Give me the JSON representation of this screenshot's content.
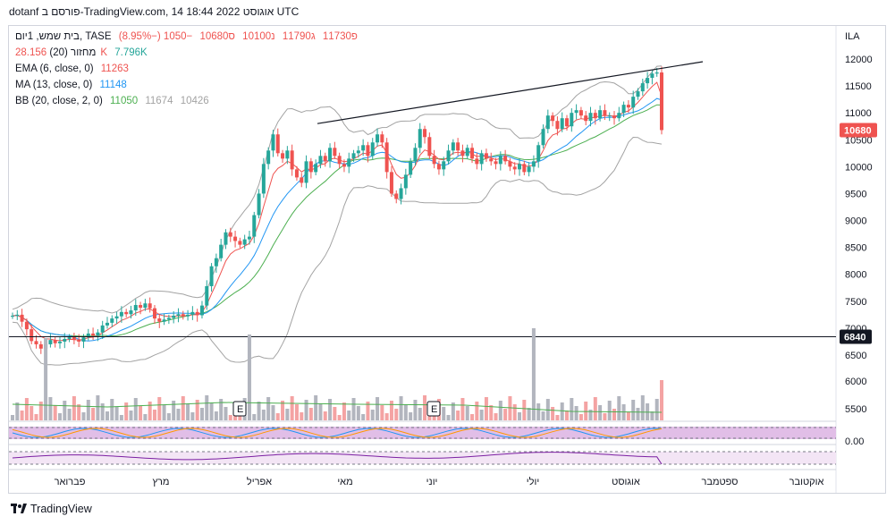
{
  "header": {
    "title": "dotanf פורסם ב-TradingView.com, 14 אוגוסט 2022 18:44 UTC"
  },
  "legend": {
    "main": {
      "symbol": "בית שמש, 1יום, TASE",
      "open": "פ11730",
      "high": "ג11790",
      "low": "נ10100",
      "close": "ס10680",
      "change": "−1050 (−8.95%)"
    },
    "volume": {
      "label": "מחזור (20)",
      "v1": "28.156K",
      "v2": "7.796K"
    },
    "ema": {
      "label": "EMA (6, close, 0)",
      "v": "11263"
    },
    "ma": {
      "label": "MA (13, close, 0)",
      "v": "11148"
    },
    "bb": {
      "label": "BB (20, close, 2, 0)",
      "v1": "11050",
      "v2": "11674",
      "v3": "10426"
    }
  },
  "currency": "ILA",
  "price_labels": {
    "last": "10680",
    "hline": "6840",
    "osc": "0.00"
  },
  "earnings_marker": "E",
  "footer": {
    "brand": "TradingView"
  },
  "colors": {
    "up": "#26a69a",
    "down": "#ef5350",
    "ema": "#ef5350",
    "ma": "#2196f3",
    "bb_basis": "#4caf50",
    "bb_band": "#a3a3a3",
    "vol_down": "#f4a3a3",
    "vol_up": "#b2b5be",
    "osc_fill": "#e1bee7",
    "osc_line": "#7b1fa2"
  },
  "chart_data": {
    "type": "candlestick",
    "x_months": [
      "פברואר",
      "מרץ",
      "אפריל",
      "מאי",
      "יוני",
      "יולי",
      "אוגוסט",
      "ספטמבר",
      "אוקטובר"
    ],
    "y_ticks": [
      6500,
      7000,
      7500,
      8000,
      8500,
      9000,
      9500,
      10000,
      10500,
      11000,
      11500,
      12000
    ],
    "volume_ticks": [
      5500,
      6000
    ],
    "horizontal_line": 6840,
    "trendline": {
      "from": [
        "2022-04-23",
        10800
      ],
      "to": [
        "2022-09-05",
        11950
      ]
    },
    "closes": [
      7230,
      7250,
      7120,
      6980,
      6760,
      6700,
      6620,
      6700,
      6780,
      6720,
      6750,
      6800,
      6830,
      6780,
      6750,
      6830,
      6900,
      6860,
      6920,
      7050,
      7100,
      7180,
      7220,
      7300,
      7260,
      7330,
      7430,
      7380,
      7460,
      7370,
      7180,
      7120,
      7160,
      7190,
      7230,
      7260,
      7220,
      7250,
      7300,
      7240,
      7420,
      7780,
      8150,
      8300,
      8550,
      8780,
      8700,
      8620,
      8550,
      8650,
      8700,
      9100,
      9500,
      10050,
      10300,
      10600,
      10250,
      10150,
      10300,
      9950,
      9800,
      9700,
      10100,
      9900,
      10050,
      10200,
      10100,
      10350,
      10200,
      10050,
      10000,
      10150,
      10250,
      10300,
      10400,
      10200,
      10450,
      10600,
      10450,
      9900,
      9500,
      9400,
      9600,
      9850,
      10100,
      10350,
      10700,
      10550,
      10200,
      10050,
      9950,
      10100,
      10300,
      10450,
      10300,
      10200,
      10350,
      10150,
      10050,
      10250,
      10150,
      10100,
      10050,
      10200,
      10100,
      10000,
      9950,
      10050,
      9900,
      10000,
      10100,
      10400,
      10700,
      10950,
      10850,
      10700,
      10900,
      10750,
      11000,
      11050,
      10950,
      10850,
      11000,
      10900,
      11050,
      10950,
      10950,
      10900,
      11000,
      11150,
      11100,
      11300,
      11400,
      11550,
      11650,
      11730,
      11750,
      10680
    ],
    "ema6_last": 11263,
    "ma13_last": 11148,
    "bb_last": {
      "basis": 11050,
      "upper": 11674,
      "lower": 10426
    },
    "last_close": 10680
  }
}
